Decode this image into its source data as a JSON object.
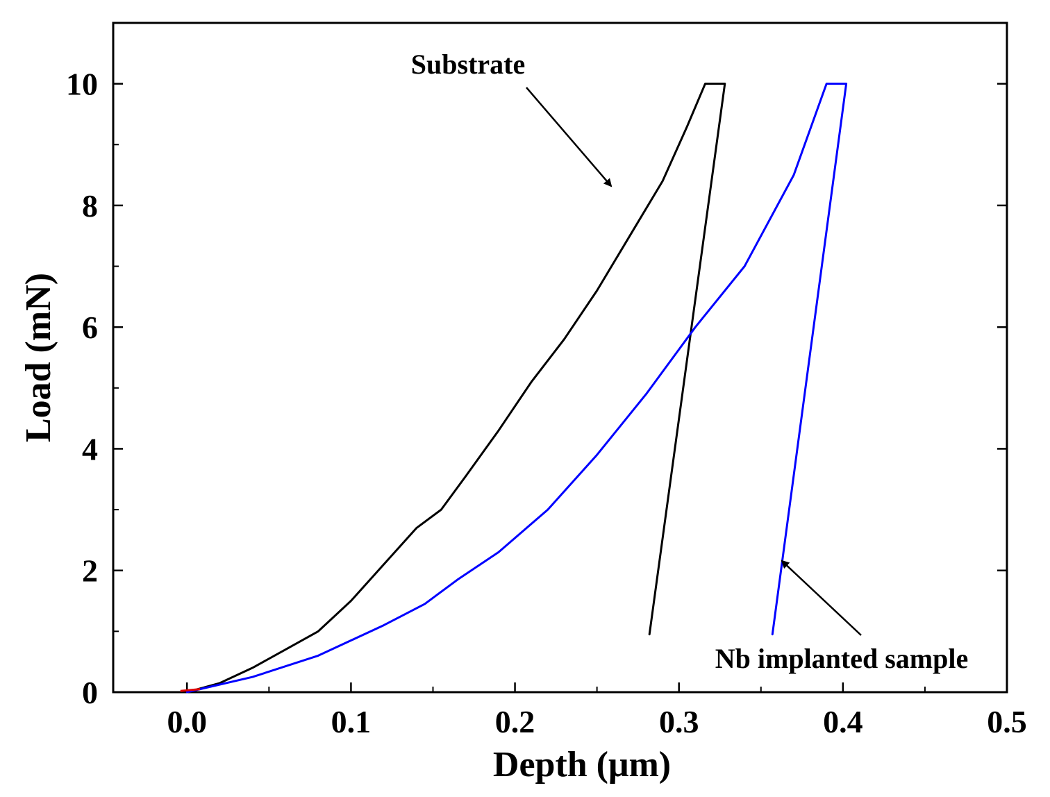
{
  "chart_data": {
    "type": "line",
    "title": "",
    "xlabel": "Depth (μm)",
    "ylabel": "Load (mN)",
    "xlim": [
      -0.045,
      0.5
    ],
    "ylim": [
      0,
      11
    ],
    "x_ticks": [
      0.0,
      0.1,
      0.2,
      0.3,
      0.4,
      0.5
    ],
    "x_tick_labels": [
      "0.0",
      "0.1",
      "0.2",
      "0.3",
      "0.4",
      "0.5"
    ],
    "y_ticks": [
      0,
      2,
      4,
      6,
      8,
      10
    ],
    "y_tick_labels": [
      "0",
      "2",
      "4",
      "6",
      "8",
      "10"
    ],
    "grid": false,
    "series": [
      {
        "name": "Substrate",
        "color": "#000000",
        "x": [
          0.0,
          0.02,
          0.04,
          0.06,
          0.08,
          0.1,
          0.12,
          0.14,
          0.155,
          0.17,
          0.19,
          0.21,
          0.23,
          0.25,
          0.27,
          0.29,
          0.305,
          0.316,
          0.328,
          0.282
        ],
        "y": [
          0.0,
          0.15,
          0.4,
          0.7,
          1.0,
          1.5,
          2.1,
          2.7,
          3.0,
          3.55,
          4.3,
          5.1,
          5.8,
          6.6,
          7.5,
          8.4,
          9.3,
          10.0,
          10.0,
          0.95
        ]
      },
      {
        "name": "Nb implanted sample",
        "color": "#0000ff",
        "x": [
          0.0,
          0.04,
          0.08,
          0.12,
          0.145,
          0.165,
          0.19,
          0.22,
          0.25,
          0.28,
          0.31,
          0.34,
          0.37,
          0.39,
          0.402,
          0.357
        ],
        "y": [
          0.0,
          0.25,
          0.6,
          1.1,
          1.45,
          1.85,
          2.3,
          3.0,
          3.9,
          4.9,
          6.0,
          7.0,
          8.5,
          10.0,
          10.0,
          0.95
        ]
      }
    ],
    "annotations": [
      {
        "text": "Substrate",
        "target_series": "Substrate"
      },
      {
        "text": "Nb implanted sample",
        "target_series": "Nb implanted sample"
      }
    ]
  }
}
